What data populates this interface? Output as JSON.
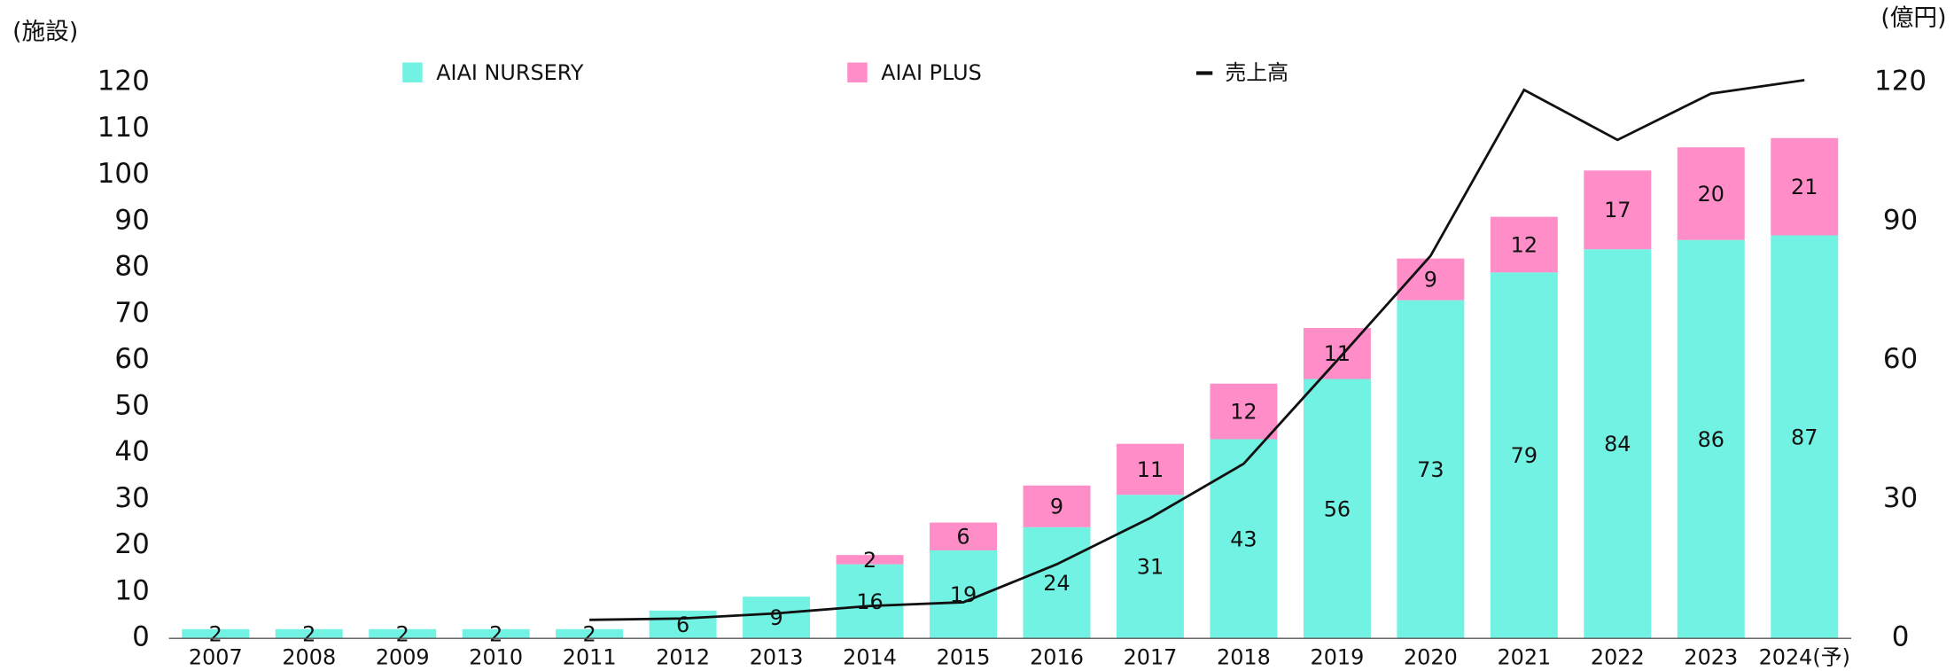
{
  "chart_data": {
    "type": "bar",
    "y_label": "(施設)",
    "y2_label": "(億円)",
    "categories": [
      "2007",
      "2008",
      "2009",
      "2010",
      "2011",
      "2012",
      "2013",
      "2014",
      "2015",
      "2016",
      "2017",
      "2018",
      "2019",
      "2020",
      "2021",
      "2022",
      "2023",
      "2024(予)"
    ],
    "series": [
      {
        "name": "AIAI NURSERY",
        "color": "#72f2e2",
        "type": "bar",
        "values": [
          2,
          2,
          2,
          2,
          2,
          6,
          9,
          16,
          19,
          24,
          31,
          43,
          56,
          73,
          79,
          84,
          86,
          87
        ]
      },
      {
        "name": "AIAI PLUS",
        "color": "#ff8ec8",
        "type": "bar",
        "values": [
          null,
          null,
          null,
          null,
          null,
          null,
          null,
          2,
          6,
          9,
          11,
          12,
          11,
          9,
          12,
          17,
          20,
          21
        ]
      },
      {
        "name": "売上高",
        "color": "#111111",
        "type": "line",
        "axis": "y2",
        "values": [
          null,
          null,
          null,
          null,
          4,
          4.3,
          5.4,
          7,
          7.8,
          16,
          26,
          37.7,
          60,
          82.6,
          118.4,
          107.6,
          117.6,
          120.5
        ]
      }
    ],
    "ylim": [
      0,
      120
    ],
    "yticks": [
      0,
      10,
      20,
      30,
      40,
      50,
      60,
      70,
      80,
      90,
      100,
      110,
      120
    ],
    "y2lim": [
      0,
      120
    ],
    "y2ticks": [
      0,
      30,
      60,
      90,
      120
    ],
    "stacked": true,
    "legend": "top"
  }
}
